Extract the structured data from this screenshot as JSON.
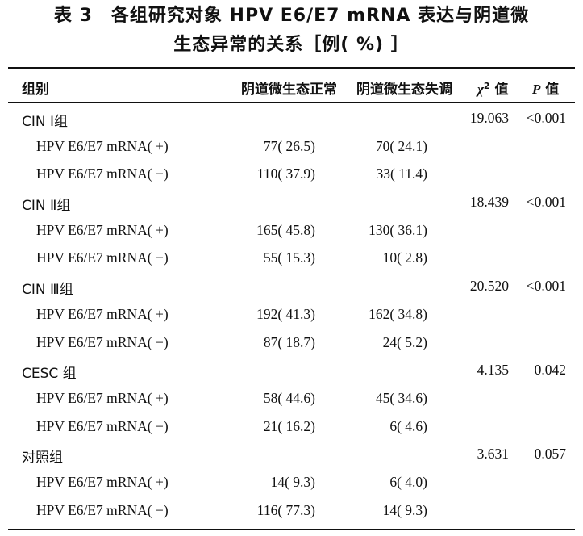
{
  "title": {
    "line1": "表 3　各组研究对象 HPV E6/E7 mRNA 表达与阴道微",
    "line2": "生态异常的关系［例( %) ］"
  },
  "table": {
    "headers": {
      "group": "组别",
      "normal": "阴道微生态正常",
      "abnormal": "阴道微生态失调",
      "chi_symbol": "χ",
      "chi_sup": "2",
      "chi_suffix": " 值",
      "p_symbol": "P",
      "p_suffix": " 值"
    },
    "rows": [
      {
        "type": "grp",
        "label": "CIN Ⅰ组",
        "normal": "",
        "abnormal": "",
        "chi": "19.063",
        "p": "<0.001"
      },
      {
        "type": "sub",
        "label": "HPV E6/E7 mRNA( +)",
        "normal": "77( 26.5)",
        "abnormal": "70( 24.1)",
        "chi": "",
        "p": ""
      },
      {
        "type": "sub",
        "label": "HPV E6/E7 mRNA( −)",
        "normal": "110( 37.9)",
        "abnormal": "33( 11.4)",
        "chi": "",
        "p": ""
      },
      {
        "type": "grp",
        "label": "CIN Ⅱ组",
        "normal": "",
        "abnormal": "",
        "chi": "18.439",
        "p": "<0.001"
      },
      {
        "type": "sub",
        "label": "HPV E6/E7 mRNA( +)",
        "normal": "165( 45.8)",
        "abnormal": "130( 36.1)",
        "chi": "",
        "p": ""
      },
      {
        "type": "sub",
        "label": "HPV E6/E7 mRNA( −)",
        "normal": "55( 15.3)",
        "abnormal": "10( 2.8)",
        "chi": "",
        "p": ""
      },
      {
        "type": "grp",
        "label": "CIN Ⅲ组",
        "normal": "",
        "abnormal": "",
        "chi": "20.520",
        "p": "<0.001"
      },
      {
        "type": "sub",
        "label": "HPV E6/E7 mRNA( +)",
        "normal": "192( 41.3)",
        "abnormal": "162( 34.8)",
        "chi": "",
        "p": ""
      },
      {
        "type": "sub",
        "label": "HPV E6/E7 mRNA( −)",
        "normal": "87( 18.7)",
        "abnormal": "24( 5.2)",
        "chi": "",
        "p": ""
      },
      {
        "type": "grp",
        "label": "CESC 组",
        "normal": "",
        "abnormal": "",
        "chi": "4.135",
        "p": "0.042"
      },
      {
        "type": "sub",
        "label": "HPV E6/E7 mRNA( +)",
        "normal": "58( 44.6)",
        "abnormal": "45( 34.6)",
        "chi": "",
        "p": ""
      },
      {
        "type": "sub",
        "label": "HPV E6/E7 mRNA( −)",
        "normal": "21( 16.2)",
        "abnormal": "6( 4.6)",
        "chi": "",
        "p": ""
      },
      {
        "type": "grp",
        "label": "对照组",
        "normal": "",
        "abnormal": "",
        "chi": "3.631",
        "p": "0.057"
      },
      {
        "type": "sub",
        "label": "HPV E6/E7 mRNA( +)",
        "normal": "14( 9.3)",
        "abnormal": "6( 4.0)",
        "chi": "",
        "p": ""
      },
      {
        "type": "sub",
        "label": "HPV E6/E7 mRNA( −)",
        "normal": "116( 77.3)",
        "abnormal": "14( 9.3)",
        "chi": "",
        "p": ""
      }
    ]
  }
}
